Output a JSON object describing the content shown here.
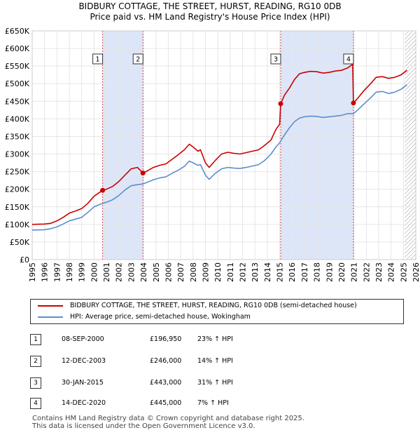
{
  "title_line1": "BIDBURY COTTAGE, THE STREET, HURST, READING, RG10 0DB",
  "title_line2": "Price paid vs. HM Land Registry's House Price Index (HPI)",
  "chart_data": {
    "type": "line",
    "xlim": [
      1995,
      2026
    ],
    "ylim": [
      0,
      650000
    ],
    "yticks": [
      0,
      50000,
      100000,
      150000,
      200000,
      250000,
      300000,
      350000,
      400000,
      450000,
      500000,
      550000,
      600000,
      650000
    ],
    "ytick_labels": [
      "£0",
      "£50K",
      "£100K",
      "£150K",
      "£200K",
      "£250K",
      "£300K",
      "£350K",
      "£400K",
      "£450K",
      "£500K",
      "£550K",
      "£600K",
      "£650K"
    ],
    "xticks": [
      1995,
      1996,
      1997,
      1998,
      1999,
      2000,
      2001,
      2002,
      2003,
      2004,
      2005,
      2006,
      2007,
      2008,
      2009,
      2010,
      2011,
      2012,
      2013,
      2014,
      2015,
      2016,
      2017,
      2018,
      2019,
      2020,
      2021,
      2022,
      2023,
      2024,
      2025,
      2026
    ],
    "grid": true,
    "colors": {
      "property": "#cc0000",
      "hpi": "#5b8fcc",
      "shade": "#dde6f8",
      "marker_line": "#cc0000"
    },
    "shaded_ranges": [
      [
        2000.69,
        2003.95
      ],
      [
        2015.08,
        2020.96
      ]
    ],
    "future_from": 2025.1,
    "sales": [
      {
        "label": "1",
        "x": 2000.69,
        "y": 196950
      },
      {
        "label": "2",
        "x": 2003.95,
        "y": 246000
      },
      {
        "label": "3",
        "x": 2015.08,
        "y": 443000
      },
      {
        "label": "4",
        "x": 2020.96,
        "y": 445000
      }
    ],
    "series": [
      {
        "name": "BIDBURY COTTAGE, THE STREET, HURST, READING, RG10 0DB (semi-detached house)",
        "color": "#cc0000",
        "points": [
          [
            1995.0,
            100000
          ],
          [
            1996.0,
            101000
          ],
          [
            1996.5,
            103000
          ],
          [
            1997.0,
            110000
          ],
          [
            1997.5,
            120000
          ],
          [
            1998.0,
            132000
          ],
          [
            1998.5,
            138000
          ],
          [
            1999.0,
            145000
          ],
          [
            1999.5,
            160000
          ],
          [
            2000.0,
            180000
          ],
          [
            2000.69,
            196950
          ],
          [
            2001.0,
            200000
          ],
          [
            2001.5,
            208000
          ],
          [
            2002.0,
            222000
          ],
          [
            2002.5,
            240000
          ],
          [
            2003.0,
            258000
          ],
          [
            2003.5,
            262000
          ],
          [
            2003.95,
            246000
          ],
          [
            2004.3,
            252000
          ],
          [
            2004.8,
            262000
          ],
          [
            2005.3,
            268000
          ],
          [
            2005.8,
            272000
          ],
          [
            2006.3,
            285000
          ],
          [
            2006.8,
            298000
          ],
          [
            2007.3,
            312000
          ],
          [
            2007.7,
            328000
          ],
          [
            2008.0,
            320000
          ],
          [
            2008.4,
            308000
          ],
          [
            2008.6,
            312000
          ],
          [
            2009.0,
            275000
          ],
          [
            2009.3,
            262000
          ],
          [
            2009.8,
            282000
          ],
          [
            2010.3,
            300000
          ],
          [
            2010.8,
            305000
          ],
          [
            2011.3,
            302000
          ],
          [
            2011.8,
            300000
          ],
          [
            2012.3,
            304000
          ],
          [
            2012.8,
            308000
          ],
          [
            2013.3,
            312000
          ],
          [
            2013.8,
            325000
          ],
          [
            2014.3,
            340000
          ],
          [
            2014.7,
            370000
          ],
          [
            2015.0,
            385000
          ],
          [
            2015.08,
            443000
          ],
          [
            2015.4,
            468000
          ],
          [
            2015.8,
            488000
          ],
          [
            2016.2,
            512000
          ],
          [
            2016.6,
            528000
          ],
          [
            2017.0,
            532000
          ],
          [
            2017.5,
            535000
          ],
          [
            2018.0,
            534000
          ],
          [
            2018.5,
            530000
          ],
          [
            2019.0,
            532000
          ],
          [
            2019.5,
            536000
          ],
          [
            2020.0,
            538000
          ],
          [
            2020.5,
            545000
          ],
          [
            2020.9,
            555000
          ],
          [
            2020.96,
            445000
          ],
          [
            2021.3,
            458000
          ],
          [
            2021.8,
            480000
          ],
          [
            2022.3,
            498000
          ],
          [
            2022.8,
            518000
          ],
          [
            2023.3,
            520000
          ],
          [
            2023.8,
            515000
          ],
          [
            2024.3,
            518000
          ],
          [
            2024.8,
            525000
          ],
          [
            2025.3,
            538000
          ]
        ]
      },
      {
        "name": "HPI: Average price, semi-detached house, Wokingham",
        "color": "#5b8fcc",
        "points": [
          [
            1995.0,
            84000
          ],
          [
            1996.0,
            85000
          ],
          [
            1996.5,
            88000
          ],
          [
            1997.0,
            93000
          ],
          [
            1997.5,
            101000
          ],
          [
            1998.0,
            110000
          ],
          [
            1998.5,
            115000
          ],
          [
            1999.0,
            120000
          ],
          [
            1999.5,
            134000
          ],
          [
            2000.0,
            150000
          ],
          [
            2000.69,
            160000
          ],
          [
            2001.0,
            163000
          ],
          [
            2001.5,
            170000
          ],
          [
            2002.0,
            182000
          ],
          [
            2002.5,
            198000
          ],
          [
            2003.0,
            210000
          ],
          [
            2003.5,
            213000
          ],
          [
            2003.95,
            215000
          ],
          [
            2004.3,
            220000
          ],
          [
            2004.8,
            227000
          ],
          [
            2005.3,
            232000
          ],
          [
            2005.8,
            235000
          ],
          [
            2006.3,
            245000
          ],
          [
            2006.8,
            254000
          ],
          [
            2007.3,
            265000
          ],
          [
            2007.7,
            280000
          ],
          [
            2008.0,
            275000
          ],
          [
            2008.4,
            268000
          ],
          [
            2008.6,
            270000
          ],
          [
            2009.0,
            240000
          ],
          [
            2009.3,
            228000
          ],
          [
            2009.8,
            245000
          ],
          [
            2010.3,
            258000
          ],
          [
            2010.8,
            262000
          ],
          [
            2011.3,
            260000
          ],
          [
            2011.8,
            259000
          ],
          [
            2012.3,
            262000
          ],
          [
            2012.8,
            266000
          ],
          [
            2013.3,
            270000
          ],
          [
            2013.8,
            282000
          ],
          [
            2014.3,
            300000
          ],
          [
            2014.7,
            320000
          ],
          [
            2015.0,
            332000
          ],
          [
            2015.08,
            337000
          ],
          [
            2015.4,
            355000
          ],
          [
            2015.8,
            375000
          ],
          [
            2016.2,
            392000
          ],
          [
            2016.6,
            402000
          ],
          [
            2017.0,
            406000
          ],
          [
            2017.5,
            408000
          ],
          [
            2018.0,
            407000
          ],
          [
            2018.5,
            404000
          ],
          [
            2019.0,
            406000
          ],
          [
            2019.5,
            408000
          ],
          [
            2020.0,
            410000
          ],
          [
            2020.5,
            415000
          ],
          [
            2020.96,
            415000
          ],
          [
            2021.3,
            425000
          ],
          [
            2021.8,
            442000
          ],
          [
            2022.3,
            458000
          ],
          [
            2022.8,
            476000
          ],
          [
            2023.3,
            478000
          ],
          [
            2023.8,
            472000
          ],
          [
            2024.3,
            476000
          ],
          [
            2024.8,
            484000
          ],
          [
            2025.3,
            497000
          ]
        ]
      }
    ]
  },
  "legend": {
    "property_label": "BIDBURY COTTAGE, THE STREET, HURST, READING, RG10 0DB (semi-detached house)",
    "hpi_label": "HPI: Average price, semi-detached house, Wokingham"
  },
  "transactions": [
    {
      "num": "1",
      "date": "08-SEP-2000",
      "price": "£196,950",
      "hpi": "23% ↑ HPI"
    },
    {
      "num": "2",
      "date": "12-DEC-2003",
      "price": "£246,000",
      "hpi": "14% ↑ HPI"
    },
    {
      "num": "3",
      "date": "30-JAN-2015",
      "price": "£443,000",
      "hpi": "31% ↑ HPI"
    },
    {
      "num": "4",
      "date": "14-DEC-2020",
      "price": "£445,000",
      "hpi": "7% ↑ HPI"
    }
  ],
  "footer_line1": "Contains HM Land Registry data © Crown copyright and database right 2025.",
  "footer_line2": "This data is licensed under the Open Government Licence v3.0."
}
